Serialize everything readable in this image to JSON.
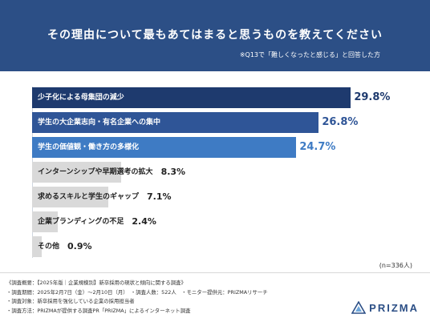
{
  "header": {
    "title": "その理由について最もあてはまると思うものを教えてください",
    "note": "※Q13で「難しくなったと感じる」と回答した方"
  },
  "chart_data": {
    "type": "bar",
    "orientation": "horizontal",
    "categories": [
      "少子化による母集団の減少",
      "学生の大企業志向・有名企業への集中",
      "学生の価値観・働き方の多様化",
      "インターンシップや早期選考の拡大",
      "求めるスキルと学生のギャップ",
      "企業ブランディングの不足",
      "その他"
    ],
    "values": [
      29.8,
      26.8,
      24.7,
      8.3,
      7.1,
      2.4,
      0.9
    ],
    "value_labels": [
      "29.8%",
      "26.8%",
      "24.7%",
      "8.3%",
      "7.1%",
      "2.4%",
      "0.9%"
    ],
    "colors": [
      "#1e3a6e",
      "#2f5597",
      "#3e7bc4",
      "#d9d9d9",
      "#d9d9d9",
      "#d9d9d9",
      "#d9d9d9"
    ],
    "xlim": [
      0,
      30
    ],
    "n_label": "(n=336人)"
  },
  "footer": {
    "lines": [
      "《調査概要：【2025年版｜企業規模別】新卒採用の現状と傾向に関する調査》",
      "・調査期間：2025年2月7日（金）〜2月10日（月）　・調査人数：522人　・モニター提供元：PRIZMAリサーチ",
      "・調査対象：新卒採用を強化している企業の採用担当者",
      "・調査方法：PRIZMAが提供する調査PR「PRIZMA」によるインターネット調査"
    ]
  },
  "logo": {
    "text": "PRIZMA",
    "icon": "prizma-logo-icon",
    "color": "#2c4f86"
  }
}
